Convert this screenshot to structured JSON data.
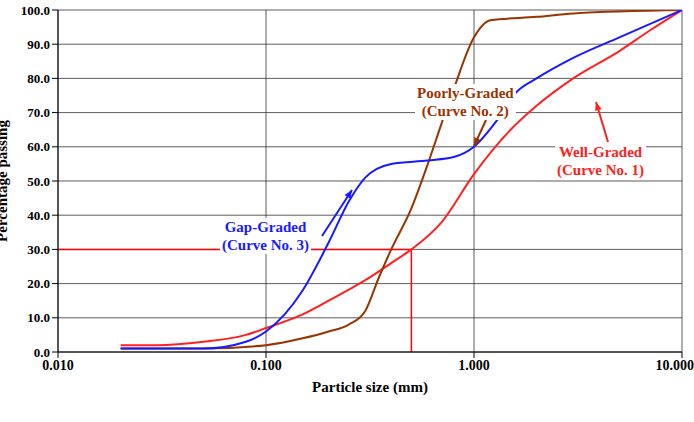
{
  "chart_data": {
    "type": "line",
    "x_label": "Particle size (mm)",
    "y_label": "Percentage passing",
    "log": "x",
    "grid": true,
    "xlim": [
      0.01,
      10
    ],
    "ylim": [
      0,
      100
    ],
    "xticks": [
      {
        "value": 0.01,
        "label": "0.010"
      },
      {
        "value": 0.1,
        "label": "0.100"
      },
      {
        "value": 1,
        "label": "1.000"
      },
      {
        "value": 10,
        "label": "10.000"
      }
    ],
    "yticks": [
      {
        "value": 0,
        "label": "0.0"
      },
      {
        "value": 10,
        "label": "10.0"
      },
      {
        "value": 20,
        "label": "20.0"
      },
      {
        "value": 30,
        "label": "30.0"
      },
      {
        "value": 40,
        "label": "40.0"
      },
      {
        "value": 50,
        "label": "50.0"
      },
      {
        "value": 60,
        "label": "60.0"
      },
      {
        "value": 70,
        "label": "70.0"
      },
      {
        "value": 80,
        "label": "80.0"
      },
      {
        "value": 90,
        "label": "90.0"
      },
      {
        "value": 100,
        "label": "100.0"
      }
    ],
    "series": [
      {
        "color": "#ff2020",
        "x": [
          0.02,
          0.03,
          0.05,
          0.08,
          0.1,
          0.15,
          0.2,
          0.3,
          0.4,
          0.5,
          0.7,
          1.0,
          1.5,
          2.0,
          3.0,
          5.0,
          7.0,
          10
        ],
        "values": [
          2,
          2,
          3,
          5,
          7,
          11,
          15,
          21,
          26,
          30,
          38,
          52,
          65,
          72,
          80,
          88,
          94,
          100
        ]
      },
      {
        "color": "#993300",
        "x": [
          0.02,
          0.05,
          0.1,
          0.15,
          0.2,
          0.25,
          0.3,
          0.35,
          0.4,
          0.5,
          0.6,
          0.7,
          0.8,
          1.0,
          1.2,
          2.0,
          3.0,
          10
        ],
        "values": [
          1,
          1,
          2,
          4,
          6,
          8,
          12,
          22,
          30,
          42,
          55,
          67,
          77,
          92,
          97,
          98,
          99,
          100
        ]
      },
      {
        "color": "#1a1aff",
        "x": [
          0.02,
          0.05,
          0.08,
          0.1,
          0.15,
          0.2,
          0.25,
          0.3,
          0.4,
          0.6,
          0.8,
          1.0,
          1.3,
          1.6,
          2.0,
          3.0,
          5.0,
          10
        ],
        "values": [
          1,
          1,
          3,
          6,
          18,
          32,
          44,
          51,
          55,
          56,
          57,
          60,
          68,
          76,
          80,
          86,
          92,
          100
        ]
      }
    ],
    "annotations": [
      {
        "text": [
          "Poorly-Graded",
          "(Curve No. 2)"
        ],
        "color": "#993300"
      },
      {
        "text": [
          "Well-Graded",
          "(Curve No. 1)"
        ],
        "color": "#ff2020"
      },
      {
        "text": [
          "Gap-Graded",
          "(Curve No. 3)"
        ],
        "color": "#1a1aff"
      }
    ],
    "d30_marker": {
      "x": 0.5,
      "y": 30,
      "color": "#ff0000"
    }
  }
}
